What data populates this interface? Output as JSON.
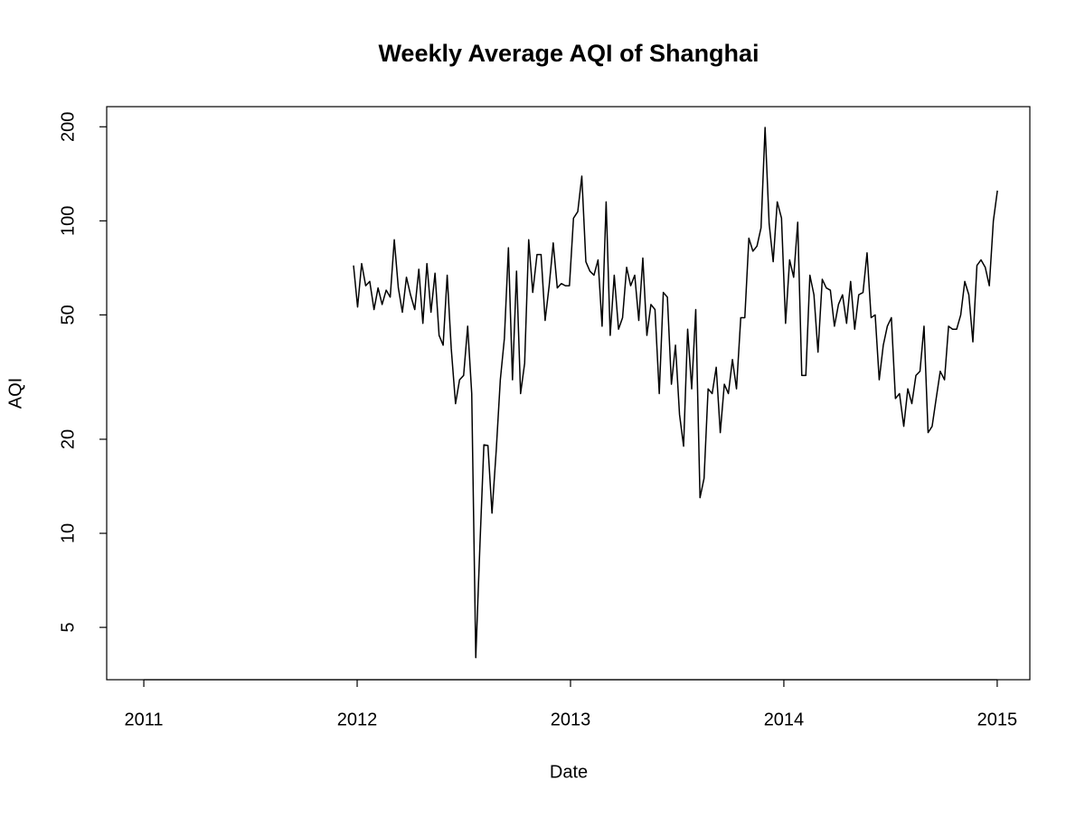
{
  "chart_data": {
    "type": "line",
    "title": "Weekly Average AQI of Shanghai",
    "x_label": "Date",
    "y_label": "AQI",
    "y_log": true,
    "color": "#000000",
    "xlim": [
      2010.826,
      2015.153
    ],
    "ylim": [
      3.4,
      232
    ],
    "xticks": [
      2011,
      2012,
      2013,
      2014,
      2015
    ],
    "yticks": [
      5,
      10,
      20,
      50,
      100,
      200
    ],
    "x": [
      2011.983,
      2012.002,
      2012.021,
      2012.04,
      2012.059,
      2012.079,
      2012.098,
      2012.117,
      2012.136,
      2012.155,
      2012.174,
      2012.193,
      2012.212,
      2012.231,
      2012.25,
      2012.27,
      2012.289,
      2012.308,
      2012.327,
      2012.346,
      2012.365,
      2012.384,
      2012.403,
      2012.422,
      2012.441,
      2012.461,
      2012.48,
      2012.499,
      2012.518,
      2012.537,
      2012.556,
      2012.575,
      2012.594,
      2012.613,
      2012.632,
      2012.652,
      2012.671,
      2012.69,
      2012.709,
      2012.728,
      2012.747,
      2012.766,
      2012.785,
      2012.804,
      2012.823,
      2012.843,
      2012.862,
      2012.881,
      2012.9,
      2012.919,
      2012.938,
      2012.957,
      2012.976,
      2012.995,
      2013.014,
      2013.034,
      2013.053,
      2013.072,
      2013.091,
      2013.11,
      2013.129,
      2013.148,
      2013.167,
      2013.186,
      2013.205,
      2013.225,
      2013.244,
      2013.263,
      2013.282,
      2013.301,
      2013.32,
      2013.339,
      2013.358,
      2013.377,
      2013.396,
      2013.416,
      2013.435,
      2013.454,
      2013.473,
      2013.492,
      2013.511,
      2013.53,
      2013.549,
      2013.568,
      2013.587,
      2013.607,
      2013.626,
      2013.645,
      2013.664,
      2013.683,
      2013.702,
      2013.721,
      2013.74,
      2013.759,
      2013.778,
      2013.798,
      2013.817,
      2013.836,
      2013.855,
      2013.874,
      2013.893,
      2013.912,
      2013.931,
      2013.95,
      2013.969,
      2013.989,
      2014.008,
      2014.027,
      2014.046,
      2014.065,
      2014.084,
      2014.103,
      2014.122,
      2014.141,
      2014.16,
      2014.18,
      2014.199,
      2014.218,
      2014.237,
      2014.256,
      2014.275,
      2014.294,
      2014.313,
      2014.332,
      2014.351,
      2014.371,
      2014.39,
      2014.409,
      2014.428,
      2014.447,
      2014.466,
      2014.485,
      2014.504,
      2014.523,
      2014.542,
      2014.562,
      2014.581,
      2014.6,
      2014.619,
      2014.638,
      2014.657,
      2014.676,
      2014.695,
      2014.714,
      2014.733,
      2014.753,
      2014.772,
      2014.791,
      2014.81,
      2014.829,
      2014.848,
      2014.867,
      2014.886,
      2014.905,
      2014.924,
      2014.944,
      2014.963,
      2014.982,
      2015.001
    ],
    "values": [
      72,
      53,
      73,
      62,
      64,
      52,
      61,
      54,
      60,
      57,
      87,
      61,
      51,
      66,
      58,
      52,
      70,
      47,
      73,
      51,
      68,
      43,
      40,
      67,
      39,
      26,
      31,
      32,
      46,
      28,
      4,
      9,
      19.2,
      19.1,
      11.6,
      18.5,
      31,
      42,
      82,
      31,
      69,
      28,
      35,
      87,
      59,
      78,
      78,
      48,
      62,
      85,
      61,
      63,
      62,
      62,
      102,
      107,
      139,
      74,
      69,
      67,
      75,
      46,
      115,
      43,
      67,
      45,
      49,
      71,
      62,
      67,
      48,
      76,
      43,
      54,
      52,
      28,
      59,
      57,
      30,
      40,
      24,
      19,
      45,
      29,
      52,
      13,
      15,
      29,
      28,
      34,
      21,
      30,
      28,
      36,
      29,
      49,
      49,
      88,
      80,
      83,
      95,
      199,
      98,
      74,
      115,
      102,
      47,
      75,
      66,
      99,
      32,
      32,
      67,
      58,
      38,
      65,
      61,
      60,
      46,
      54,
      58,
      47,
      64,
      45,
      58,
      59,
      79,
      49,
      50,
      31,
      40,
      46,
      49,
      27,
      28,
      22,
      29,
      26,
      32,
      33,
      46,
      21,
      22,
      27,
      33,
      31,
      46,
      45,
      45,
      50,
      64,
      58,
      41,
      72,
      75,
      71,
      62,
      100,
      125
    ]
  }
}
